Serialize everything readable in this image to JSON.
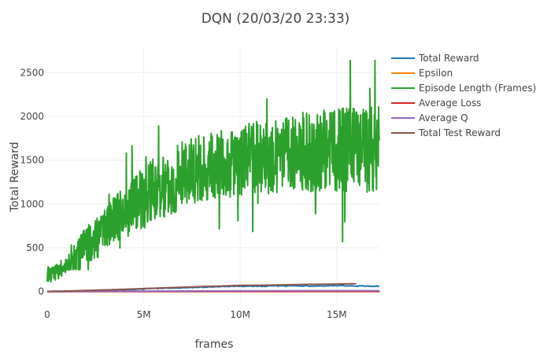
{
  "chart_data": {
    "type": "line",
    "title": "DQN (20/03/20 23:33)",
    "xlabel": "frames",
    "ylabel": "Total Reward",
    "xlim": [
      0,
      17250000
    ],
    "ylim": [
      -120,
      2790
    ],
    "x_ticks": [
      {
        "value": 0,
        "label": "0"
      },
      {
        "value": 5000000,
        "label": "5M"
      },
      {
        "value": 10000000,
        "label": "10M"
      },
      {
        "value": 15000000,
        "label": "15M"
      }
    ],
    "y_ticks": [
      {
        "value": 0,
        "label": "0"
      },
      {
        "value": 500,
        "label": "500"
      },
      {
        "value": 1000,
        "label": "1000"
      },
      {
        "value": 1500,
        "label": "1500"
      },
      {
        "value": 2000,
        "label": "2000"
      },
      {
        "value": 2500,
        "label": "2500"
      }
    ],
    "grid": true,
    "legend_position": "top-right",
    "series": [
      {
        "name": "Total Reward",
        "color": "#1f77b4",
        "x": [
          0,
          1000000,
          2000000,
          3000000,
          4000000,
          5000000,
          6000000,
          7000000,
          8000000,
          9000000,
          10000000,
          11000000,
          12000000,
          13000000,
          14000000,
          15000000,
          16000000,
          17200000
        ],
        "y": [
          0,
          4,
          9,
          15,
          22,
          30,
          37,
          44,
          50,
          56,
          62,
          60,
          64,
          66,
          63,
          67,
          65,
          62
        ]
      },
      {
        "name": "Epsilon",
        "color": "#ff7f0e",
        "x": [
          0,
          17200000
        ],
        "y": [
          0,
          0
        ]
      },
      {
        "name": "Episode Length (Frames)",
        "color": "#2ca02c",
        "x": [
          0,
          250000,
          500000,
          750000,
          1000000,
          1250000,
          1500000,
          1750000,
          2000000,
          2250000,
          2500000,
          2750000,
          3000000,
          3250000,
          3500000,
          3750000,
          4000000,
          4250000,
          4500000,
          4750000,
          5000000,
          5250000,
          5500000,
          5750000,
          6000000,
          6250000,
          6500000,
          6750000,
          7000000,
          7250000,
          7500000,
          7750000,
          8000000,
          8250000,
          8500000,
          8750000,
          9000000,
          9250000,
          9500000,
          9750000,
          10000000,
          10250000,
          10500000,
          10750000,
          11000000,
          11250000,
          11500000,
          11750000,
          12000000,
          12250000,
          12500000,
          12750000,
          13000000,
          13250000,
          13500000,
          13750000,
          14000000,
          14250000,
          14500000,
          14750000,
          15000000,
          15250000,
          15500000,
          15750000,
          16000000,
          16250000,
          16500000,
          16750000,
          17000000,
          17200000
        ],
        "y": [
          200,
          210,
          220,
          230,
          290,
          360,
          420,
          460,
          520,
          560,
          600,
          640,
          700,
          760,
          820,
          860,
          900,
          950,
          1000,
          1050,
          1080,
          1120,
          1150,
          1180,
          1200,
          1230,
          1260,
          1290,
          1320,
          1340,
          1360,
          1380,
          1400,
          1420,
          1440,
          1450,
          1460,
          1470,
          1480,
          1490,
          1500,
          1510,
          1520,
          1530,
          1530,
          1540,
          1550,
          1560,
          1560,
          1570,
          1580,
          1580,
          1590,
          1590,
          1600,
          1600,
          1600,
          1610,
          1610,
          1610,
          1610,
          1620,
          1620,
          1620,
          1610,
          1620,
          1620,
          1610,
          1620,
          1610
        ],
        "max": 2640,
        "min_late": 570
      },
      {
        "name": "Average Loss",
        "color": "#d62728",
        "x": [
          0,
          17200000
        ],
        "y": [
          0,
          1
        ]
      },
      {
        "name": "Average Q",
        "color": "#9467bd",
        "x": [
          0,
          2000000,
          5000000,
          8000000,
          11000000,
          14000000,
          17200000
        ],
        "y": [
          0,
          2,
          5,
          7,
          8,
          9,
          9
        ]
      },
      {
        "name": "Total Test Reward",
        "color": "#8c564b",
        "x": [
          0,
          1000000,
          2000000,
          3000000,
          4000000,
          5000000,
          6000000,
          7000000,
          8000000,
          9000000,
          10000000,
          11000000,
          12000000,
          13000000,
          14000000,
          15000000,
          16000000
        ],
        "y": [
          0,
          6,
          12,
          18,
          26,
          34,
          42,
          50,
          57,
          63,
          70,
          72,
          76,
          80,
          83,
          86,
          90
        ]
      }
    ]
  }
}
